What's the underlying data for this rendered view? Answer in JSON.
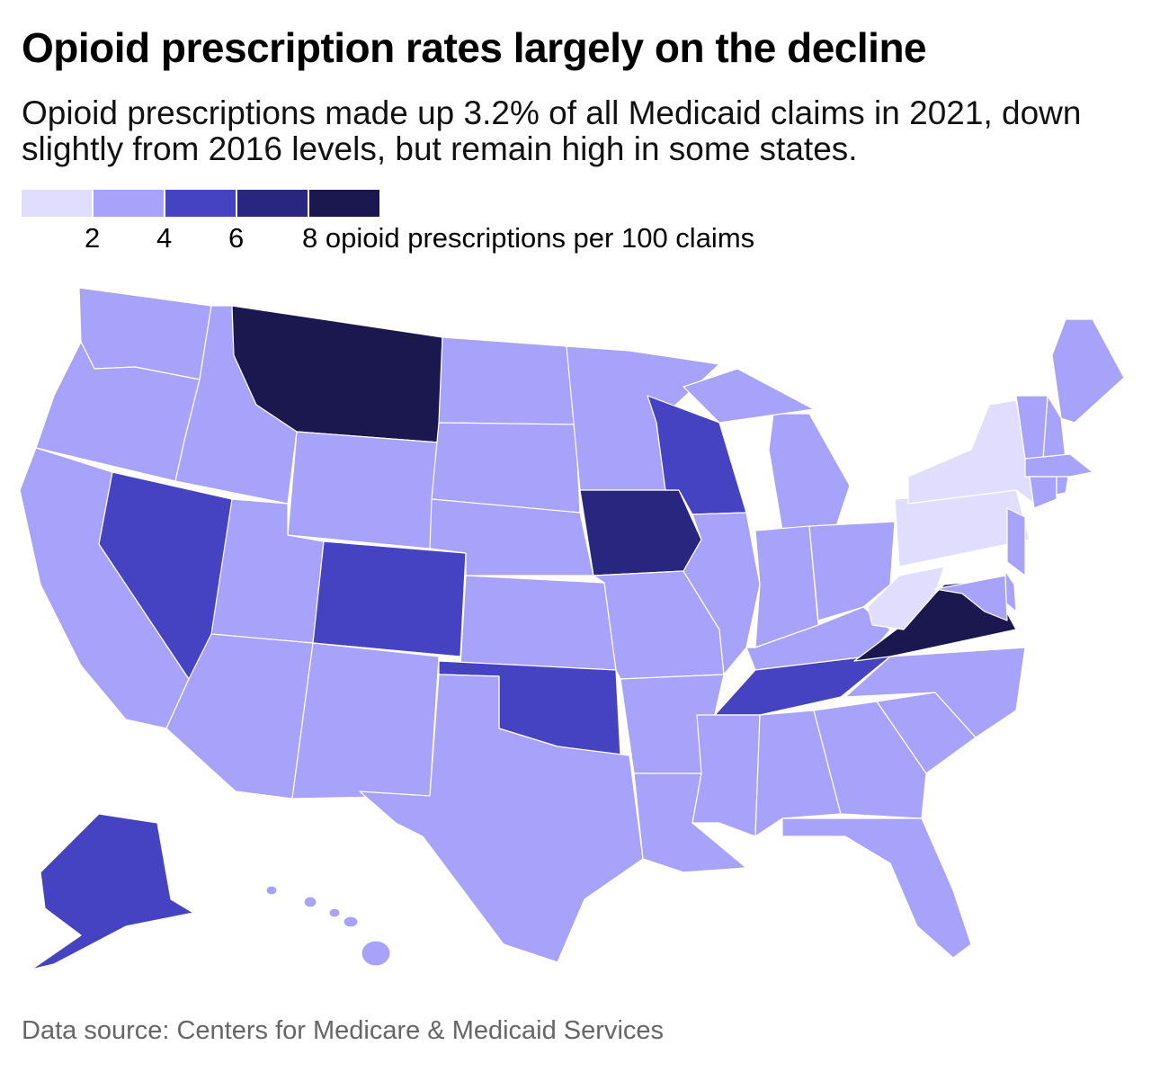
{
  "title": "Opioid prescription rates largely on the decline",
  "subtitle": "Opioid prescriptions made up 3.2% of all Medicaid claims in 2021, down slightly from 2016 levels, but remain high in some states.",
  "source": "Data source: Centers for Medicare & Medicaid Services",
  "legend": {
    "colors": [
      "#e0ddfe",
      "#a7a2fa",
      "#4643c2",
      "#29267f",
      "#1a184e"
    ],
    "ticks": [
      "2",
      "4",
      "6",
      "8 opioid prescriptions per 100 claims"
    ]
  },
  "chart_data": {
    "type": "choropleth",
    "unit": "opioid prescriptions per 100 claims",
    "bins": [
      [
        0,
        2
      ],
      [
        2,
        4
      ],
      [
        4,
        6
      ],
      [
        6,
        8
      ],
      [
        8,
        null
      ]
    ],
    "state_bins": {
      "WA": 1,
      "OR": 1,
      "CA": 1,
      "NV": 2,
      "ID": 1,
      "MT": 4,
      "WY": 1,
      "UT": 1,
      "CO": 2,
      "AZ": 1,
      "NM": 1,
      "ND": 1,
      "SD": 1,
      "NE": 1,
      "KS": 1,
      "OK": 2,
      "TX": 1,
      "MN": 1,
      "IA": 3,
      "MO": 1,
      "AR": 1,
      "LA": 1,
      "WI": 2,
      "IL": 1,
      "MI": 1,
      "MIU": 1,
      "IN": 1,
      "OH": 1,
      "KY": 1,
      "TN": 2,
      "MS": 1,
      "AL": 1,
      "GA": 1,
      "FL": 1,
      "SC": 1,
      "NC": 1,
      "VA": 4,
      "WV": 0,
      "PA": 0,
      "NY": 0,
      "ME": 1,
      "NH": 1,
      "VT": 1,
      "MA": 1,
      "CT": 1,
      "RI": 1,
      "NJ": 1,
      "DE": 1,
      "MD": 1,
      "AK": 2,
      "HI": 1
    }
  }
}
